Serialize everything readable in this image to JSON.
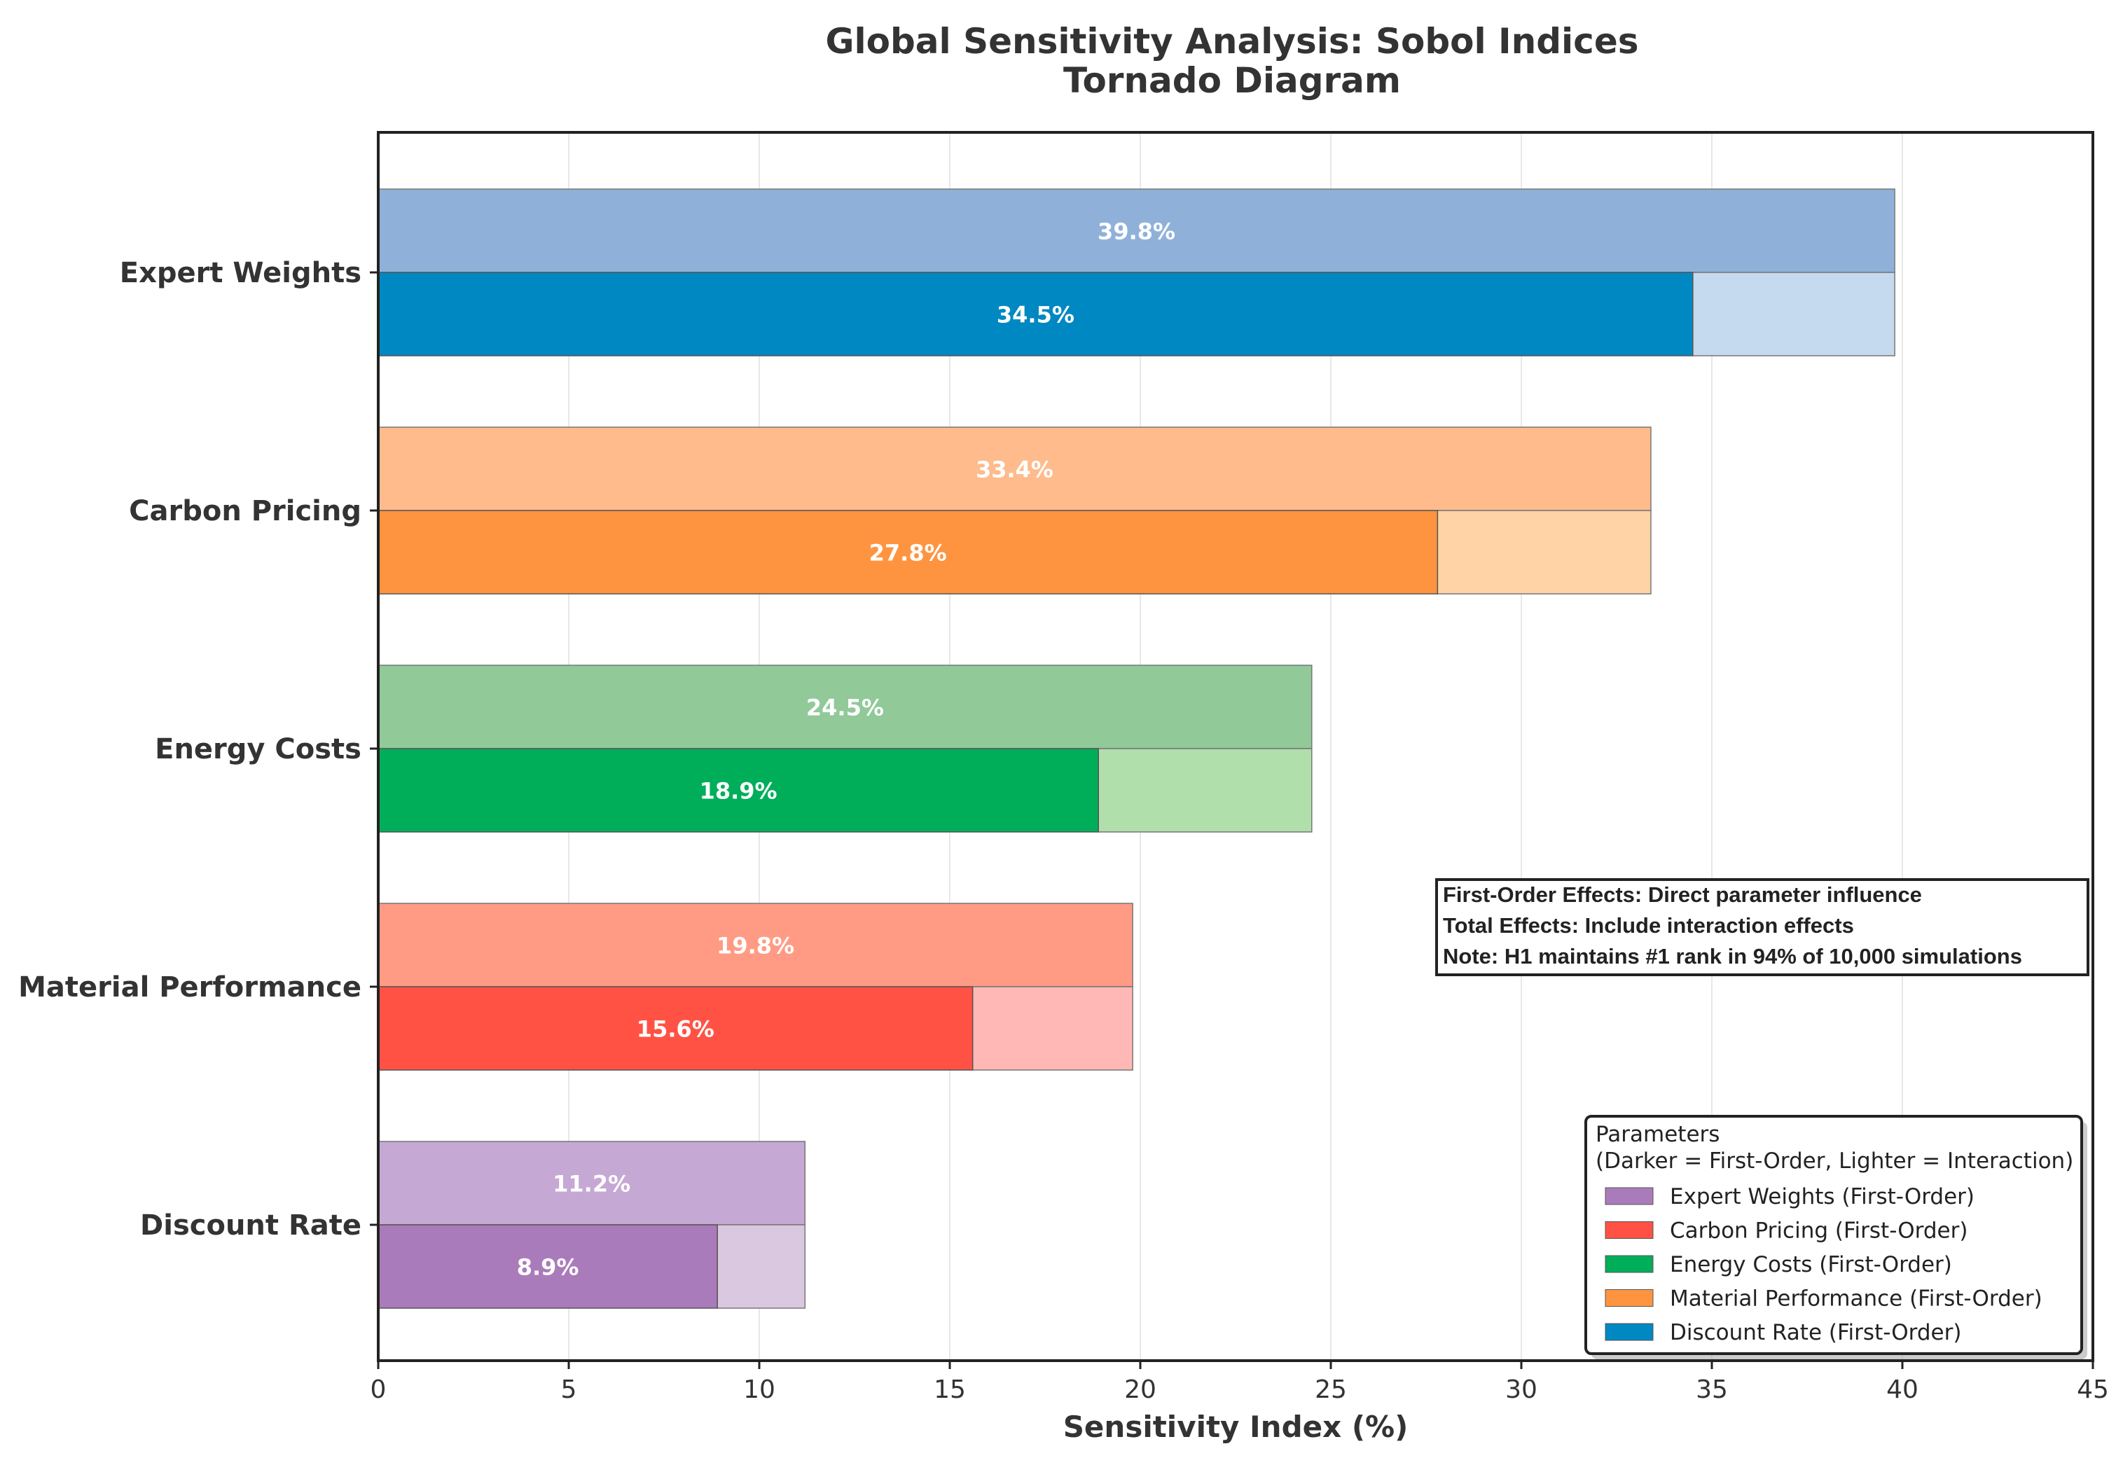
{
  "chart_data": {
    "type": "bar",
    "orientation": "horizontal",
    "title": "Global Sensitivity Analysis: Sobol Indices",
    "subtitle": "Tornado Diagram",
    "xlabel": "Sensitivity Index (%)",
    "ylabel": "",
    "xlim": [
      0,
      45
    ],
    "xticks": [
      0,
      5,
      10,
      15,
      20,
      25,
      30,
      35,
      40,
      45
    ],
    "grid": "vertical",
    "categories": [
      "Expert Weights",
      "Carbon Pricing",
      "Energy Costs",
      "Material Performance",
      "Discount Rate"
    ],
    "series": [
      {
        "values": [
          39.8,
          33.4,
          24.5,
          19.8,
          11.2
        ],
        "labels": [
          "39.8%",
          "33.4%",
          "24.5%",
          "19.8%",
          "11.2%"
        ]
      },
      {
        "values": [
          34.5,
          27.8,
          18.9,
          15.6,
          8.9
        ],
        "labels": [
          "34.5%",
          "27.8%",
          "18.9%",
          "15.6%",
          "8.9%"
        ]
      }
    ],
    "colors": {
      "total": [
        "#8fb1d9",
        "#ffbb8c",
        "#91c999",
        "#ff9b84",
        "#c6a8d4"
      ],
      "first": [
        "#0088c2",
        "#ff9440",
        "#00ae5a",
        "#ff5245",
        "#aa7bbb"
      ],
      "interaction": [
        "#c5d9ef",
        "#ffd3a5",
        "#b1dfac",
        "#ffb8b6",
        "#dac8e1"
      ]
    },
    "annotation": [
      "First-Order Effects: Direct parameter influence",
      "Total Effects: Include interaction effects",
      "Note: H1 maintains #1 rank in 94% of 10,000 simulations"
    ],
    "legend": {
      "placement": "bottom-right",
      "title": "Parameters\n(Darker = First-Order, Lighter = Interaction)",
      "entries": [
        {
          "label": "Expert Weights (First-Order)",
          "color": "#aa7bbb"
        },
        {
          "label": "Carbon Pricing (First-Order)",
          "color": "#ff5245"
        },
        {
          "label": "Energy Costs (First-Order)",
          "color": "#00ae5a"
        },
        {
          "label": "Material Performance (First-Order)",
          "color": "#ff9440"
        },
        {
          "label": "Discount Rate (First-Order)",
          "color": "#0088c2"
        }
      ]
    }
  }
}
